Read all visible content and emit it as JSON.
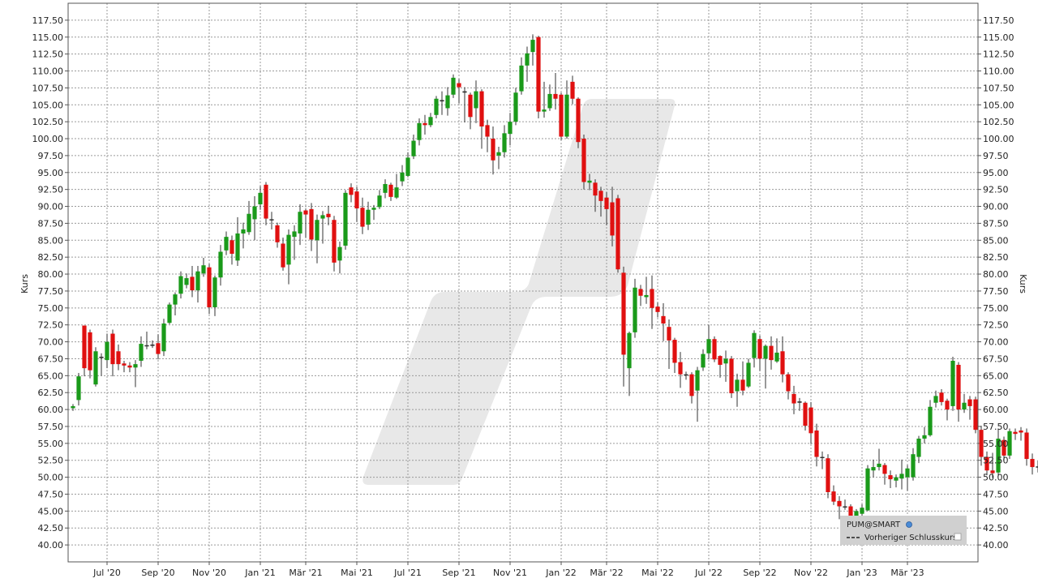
{
  "chart_data": {
    "type": "candlestick",
    "title": "",
    "ylabel_left": "Kurs",
    "ylabel_right": "Kurs",
    "ylim": [
      37.5,
      120
    ],
    "y_ticks": [
      "40.00",
      "42.50",
      "45.00",
      "47.50",
      "50.00",
      "52.50",
      "55.00",
      "57.50",
      "60.00",
      "62.50",
      "65.00",
      "67.50",
      "70.00",
      "72.50",
      "75.00",
      "77.50",
      "80.00",
      "82.50",
      "85.00",
      "87.50",
      "90.00",
      "92.50",
      "95.00",
      "97.50",
      "100.00",
      "102.50",
      "105.00",
      "107.50",
      "110.00",
      "112.50",
      "115.00",
      "117.50"
    ],
    "x_ticks": [
      {
        "label": "Jul '20",
        "week": 6
      },
      {
        "label": "Sep '20",
        "week": 15
      },
      {
        "label": "Nov '20",
        "week": 24
      },
      {
        "label": "Jan '21",
        "week": 33
      },
      {
        "label": "Mär '21",
        "week": 41
      },
      {
        "label": "Mai '21",
        "week": 50
      },
      {
        "label": "Jul '21",
        "week": 59
      },
      {
        "label": "Sep '21",
        "week": 68
      },
      {
        "label": "Nov '21",
        "week": 77
      },
      {
        "label": "Jan '22",
        "week": 86
      },
      {
        "label": "Mär '22",
        "week": 94
      },
      {
        "label": "Mai '22",
        "week": 103
      },
      {
        "label": "Jul '22",
        "week": 112
      },
      {
        "label": "Sep '22",
        "week": 121
      },
      {
        "label": "Nov '22",
        "week": 130
      },
      {
        "label": "Jan '23",
        "week": 139
      },
      {
        "label": "Mär '23",
        "week": 147
      }
    ],
    "x_unit": "weeks",
    "x_range": [
      0,
      160
    ],
    "grid": true,
    "legend": {
      "position": "bottom-right",
      "title": "PUM@SMART",
      "entries": [
        "Vorheriger Schlusskurs"
      ]
    },
    "colors": {
      "up": "#1a9a1a",
      "down": "#e01010",
      "grid": "#9a9a9a",
      "legend_bg": "#d0d0d0"
    },
    "candles": [
      [
        60.2,
        60.5,
        59.8,
        60.8
      ],
      [
        61.4,
        64.9,
        60.6,
        65.4
      ],
      [
        72.4,
        66.1,
        64.9,
        72.4
      ],
      [
        71.4,
        65.8,
        64.6,
        71.8
      ],
      [
        63.7,
        68.6,
        63.4,
        69.2
      ],
      [
        67.8,
        67.6,
        65.0,
        68.3
      ],
      [
        67.3,
        70.0,
        66.1,
        71.2
      ],
      [
        71.2,
        66.7,
        64.9,
        71.8
      ],
      [
        68.6,
        66.7,
        65.8,
        69.6
      ],
      [
        66.8,
        66.5,
        65.5,
        67.2
      ],
      [
        66.5,
        66.2,
        65.5,
        67.0
      ],
      [
        66.2,
        66.7,
        63.3,
        67.3
      ],
      [
        67.2,
        69.7,
        66.3,
        70.8
      ],
      [
        69.5,
        69.4,
        68.9,
        71.5
      ],
      [
        69.4,
        69.6,
        69.1,
        70.2
      ],
      [
        69.8,
        68.2,
        67.4,
        71.1
      ],
      [
        68.6,
        72.7,
        67.9,
        73.4
      ],
      [
        72.8,
        75.5,
        72.6,
        75.8
      ],
      [
        75.5,
        77.0,
        73.9,
        77.3
      ],
      [
        77.1,
        79.7,
        76.4,
        80.4
      ],
      [
        78.4,
        79.4,
        77.9,
        80.1
      ],
      [
        79.6,
        77.6,
        76.6,
        81.2
      ],
      [
        77.6,
        80.4,
        75.8,
        81.2
      ],
      [
        80.1,
        81.3,
        79.6,
        82.4
      ],
      [
        81.0,
        75.1,
        74.1,
        81.5
      ],
      [
        75.1,
        79.5,
        73.8,
        79.8
      ],
      [
        79.5,
        83.3,
        78.3,
        84.3
      ],
      [
        83.5,
        85.5,
        82.8,
        86.3
      ],
      [
        85.0,
        83.0,
        81.4,
        85.7
      ],
      [
        82.0,
        86.0,
        81.2,
        88.4
      ],
      [
        86.0,
        86.6,
        83.8,
        87.6
      ],
      [
        86.2,
        88.9,
        85.8,
        90.8
      ],
      [
        88.1,
        90.0,
        85.0,
        91.5
      ],
      [
        90.3,
        92.0,
        89.5,
        93.0
      ],
      [
        93.2,
        88.2,
        87.2,
        93.6
      ],
      [
        88.0,
        88.1,
        86.6,
        89.2
      ],
      [
        87.2,
        84.7,
        83.9,
        87.6
      ],
      [
        84.5,
        81.0,
        80.5,
        85.4
      ],
      [
        81.4,
        85.8,
        78.5,
        86.6
      ],
      [
        85.5,
        86.3,
        82.1,
        87.2
      ],
      [
        86.0,
        89.2,
        84.3,
        90.3
      ],
      [
        89.4,
        88.8,
        85.4,
        89.6
      ],
      [
        89.6,
        85.1,
        83.4,
        90.5
      ],
      [
        85.0,
        88.0,
        81.6,
        88.8
      ],
      [
        88.2,
        88.7,
        84.5,
        89.3
      ],
      [
        88.9,
        88.4,
        87.2,
        90.1
      ],
      [
        88.0,
        81.7,
        80.4,
        88.6
      ],
      [
        82.0,
        84.0,
        80.1,
        84.8
      ],
      [
        84.2,
        92.0,
        83.6,
        92.4
      ],
      [
        92.8,
        91.7,
        90.6,
        93.4
      ],
      [
        92.2,
        89.7,
        87.7,
        92.9
      ],
      [
        89.8,
        87.0,
        85.9,
        91.3
      ],
      [
        87.3,
        89.5,
        86.5,
        90.7
      ],
      [
        89.5,
        89.8,
        88.0,
        90.2
      ],
      [
        89.9,
        91.6,
        89.6,
        92.4
      ],
      [
        92.0,
        93.3,
        91.2,
        94.0
      ],
      [
        93.2,
        91.4,
        90.8,
        93.5
      ],
      [
        91.3,
        92.8,
        91.1,
        94.8
      ],
      [
        93.7,
        95.0,
        93.0,
        96.1
      ],
      [
        94.5,
        97.2,
        94.3,
        98.0
      ],
      [
        97.4,
        99.7,
        97.0,
        100.6
      ],
      [
        99.8,
        102.3,
        99.0,
        103.0
      ],
      [
        102.3,
        102.0,
        100.6,
        103.5
      ],
      [
        102.0,
        103.2,
        101.7,
        103.8
      ],
      [
        103.5,
        105.9,
        103.0,
        106.3
      ],
      [
        105.5,
        105.7,
        103.5,
        107.0
      ],
      [
        104.5,
        106.4,
        103.4,
        107.6
      ],
      [
        106.5,
        109.0,
        106.0,
        109.5
      ],
      [
        108.2,
        107.6,
        105.2,
        108.8
      ],
      [
        107.0,
        106.8,
        102.4,
        107.6
      ],
      [
        106.5,
        103.2,
        101.4,
        106.8
      ],
      [
        104.5,
        107.0,
        102.3,
        108.6
      ],
      [
        107.0,
        101.8,
        98.5,
        107.3
      ],
      [
        102.0,
        100.3,
        98.0,
        102.8
      ],
      [
        100.0,
        96.8,
        94.7,
        101.8
      ],
      [
        97.5,
        98.0,
        95.5,
        98.8
      ],
      [
        98.0,
        100.8,
        97.2,
        102.0
      ],
      [
        100.7,
        102.5,
        99.0,
        103.8
      ],
      [
        102.5,
        106.8,
        102.0,
        107.5
      ],
      [
        107.0,
        110.8,
        106.5,
        112.0
      ],
      [
        110.8,
        112.6,
        108.4,
        113.6
      ],
      [
        112.8,
        114.6,
        110.8,
        115.4
      ],
      [
        115.0,
        104.0,
        103.0,
        115.2
      ],
      [
        104.0,
        104.3,
        103.1,
        108.4
      ],
      [
        104.5,
        106.6,
        104.1,
        108.0
      ],
      [
        106.6,
        105.9,
        104.3,
        109.7
      ],
      [
        106.5,
        100.3,
        99.8,
        106.8
      ],
      [
        100.3,
        106.5,
        100.0,
        108.6
      ],
      [
        108.4,
        105.9,
        105.1,
        109.3
      ],
      [
        105.9,
        99.5,
        98.6,
        106.1
      ],
      [
        100.0,
        93.6,
        92.5,
        100.6
      ],
      [
        93.5,
        93.8,
        92.4,
        94.8
      ],
      [
        93.5,
        91.6,
        89.2,
        94.0
      ],
      [
        92.3,
        90.8,
        88.5,
        92.9
      ],
      [
        91.3,
        89.6,
        87.2,
        92.1
      ],
      [
        90.6,
        85.7,
        84.1,
        92.9
      ],
      [
        91.2,
        80.7,
        80.2,
        91.7
      ],
      [
        80.2,
        68.1,
        63.4,
        81.1
      ],
      [
        66.1,
        71.3,
        62.0,
        71.5
      ],
      [
        71.4,
        78.0,
        70.6,
        79.3
      ],
      [
        77.8,
        76.8,
        75.3,
        78.4
      ],
      [
        76.6,
        76.9,
        75.6,
        79.6
      ],
      [
        77.8,
        75.0,
        71.9,
        79.8
      ],
      [
        75.2,
        74.4,
        73.6,
        75.8
      ],
      [
        73.8,
        72.7,
        70.1,
        75.7
      ],
      [
        72.2,
        70.2,
        66.0,
        73.3
      ],
      [
        70.3,
        66.9,
        65.4,
        70.6
      ],
      [
        67.0,
        65.2,
        63.2,
        68.5
      ],
      [
        65.2,
        65.2,
        64.4,
        65.6
      ],
      [
        65.2,
        62.0,
        60.9,
        65.5
      ],
      [
        62.8,
        65.8,
        58.2,
        66.3
      ],
      [
        66.2,
        68.2,
        65.7,
        68.9
      ],
      [
        68.3,
        70.4,
        67.4,
        72.5
      ],
      [
        70.4,
        67.4,
        67.0,
        70.8
      ],
      [
        67.9,
        66.6,
        64.7,
        68.0
      ],
      [
        66.8,
        67.5,
        64.1,
        68.7
      ],
      [
        67.5,
        62.4,
        61.7,
        67.9
      ],
      [
        62.7,
        64.4,
        60.4,
        65.3
      ],
      [
        64.4,
        62.8,
        62.1,
        67.1
      ],
      [
        63.4,
        66.9,
        63.2,
        67.5
      ],
      [
        67.6,
        71.3,
        66.2,
        71.7
      ],
      [
        70.4,
        67.5,
        65.7,
        70.9
      ],
      [
        67.5,
        69.4,
        63.1,
        69.6
      ],
      [
        69.4,
        67.3,
        65.9,
        70.8
      ],
      [
        67.1,
        68.4,
        66.9,
        70.5
      ],
      [
        68.6,
        65.2,
        64.0,
        70.8
      ],
      [
        65.2,
        62.7,
        61.5,
        65.5
      ],
      [
        62.3,
        60.9,
        59.3,
        63.5
      ],
      [
        61.2,
        61.0,
        59.8,
        61.7
      ],
      [
        61.0,
        57.6,
        56.9,
        61.2
      ],
      [
        60.3,
        56.5,
        54.9,
        61.1
      ],
      [
        56.9,
        53.0,
        51.6,
        57.9
      ],
      [
        53.0,
        53.0,
        51.2,
        53.8
      ],
      [
        52.8,
        47.8,
        46.9,
        53.4
      ],
      [
        47.9,
        46.4,
        45.9,
        48.8
      ],
      [
        46.5,
        45.7,
        43.8,
        47.2
      ],
      [
        45.7,
        45.7,
        45.2,
        46.7
      ],
      [
        45.7,
        43.7,
        42.3,
        46.0
      ],
      [
        44.0,
        45.0,
        43.5,
        45.3
      ],
      [
        44.6,
        45.5,
        41.0,
        46.0
      ],
      [
        45.1,
        51.3,
        45.0,
        51.8
      ],
      [
        51.0,
        51.5,
        50.0,
        52.6
      ],
      [
        51.5,
        52.0,
        51.0,
        54.2
      ],
      [
        51.8,
        50.5,
        48.9,
        52.1
      ],
      [
        50.3,
        49.7,
        48.4,
        51.0
      ],
      [
        49.5,
        50.0,
        48.5,
        50.4
      ],
      [
        49.8,
        50.5,
        48.2,
        52.6
      ],
      [
        50.0,
        51.3,
        48.0,
        51.8
      ],
      [
        50.0,
        53.4,
        49.5,
        54.3
      ],
      [
        53.0,
        55.7,
        52.1,
        56.1
      ],
      [
        55.7,
        56.2,
        55.0,
        57.4
      ],
      [
        56.2,
        60.4,
        56.0,
        61.4
      ],
      [
        61.0,
        62.0,
        60.3,
        62.8
      ],
      [
        62.5,
        61.1,
        60.6,
        63.0
      ],
      [
        61.3,
        60.0,
        58.4,
        61.6
      ],
      [
        60.5,
        67.2,
        59.8,
        67.8
      ],
      [
        66.6,
        60.0,
        58.2,
        67.0
      ],
      [
        60.0,
        61.0,
        59.5,
        62.3
      ],
      [
        61.5,
        60.5,
        58.5,
        62.0
      ],
      [
        61.5,
        57.0,
        56.5,
        61.9
      ],
      [
        57.0,
        53.0,
        51.7,
        57.6
      ],
      [
        53.0,
        51.0,
        50.3,
        53.8
      ],
      [
        51.0,
        50.6,
        49.9,
        53.6
      ],
      [
        50.7,
        55.7,
        50.2,
        57.2
      ],
      [
        55.5,
        53.2,
        52.3,
        56.0
      ],
      [
        53.2,
        56.8,
        52.7,
        57.2
      ],
      [
        56.7,
        56.4,
        55.5,
        57.2
      ],
      [
        56.9,
        56.6,
        55.4,
        57.4
      ],
      [
        56.6,
        52.7,
        51.7,
        57.2
      ],
      [
        52.7,
        51.5,
        50.4,
        53.5
      ],
      [
        51.6,
        51.6,
        50.7,
        52.5
      ],
      [
        52.6,
        49.9,
        49.3,
        53.1
      ]
    ]
  }
}
